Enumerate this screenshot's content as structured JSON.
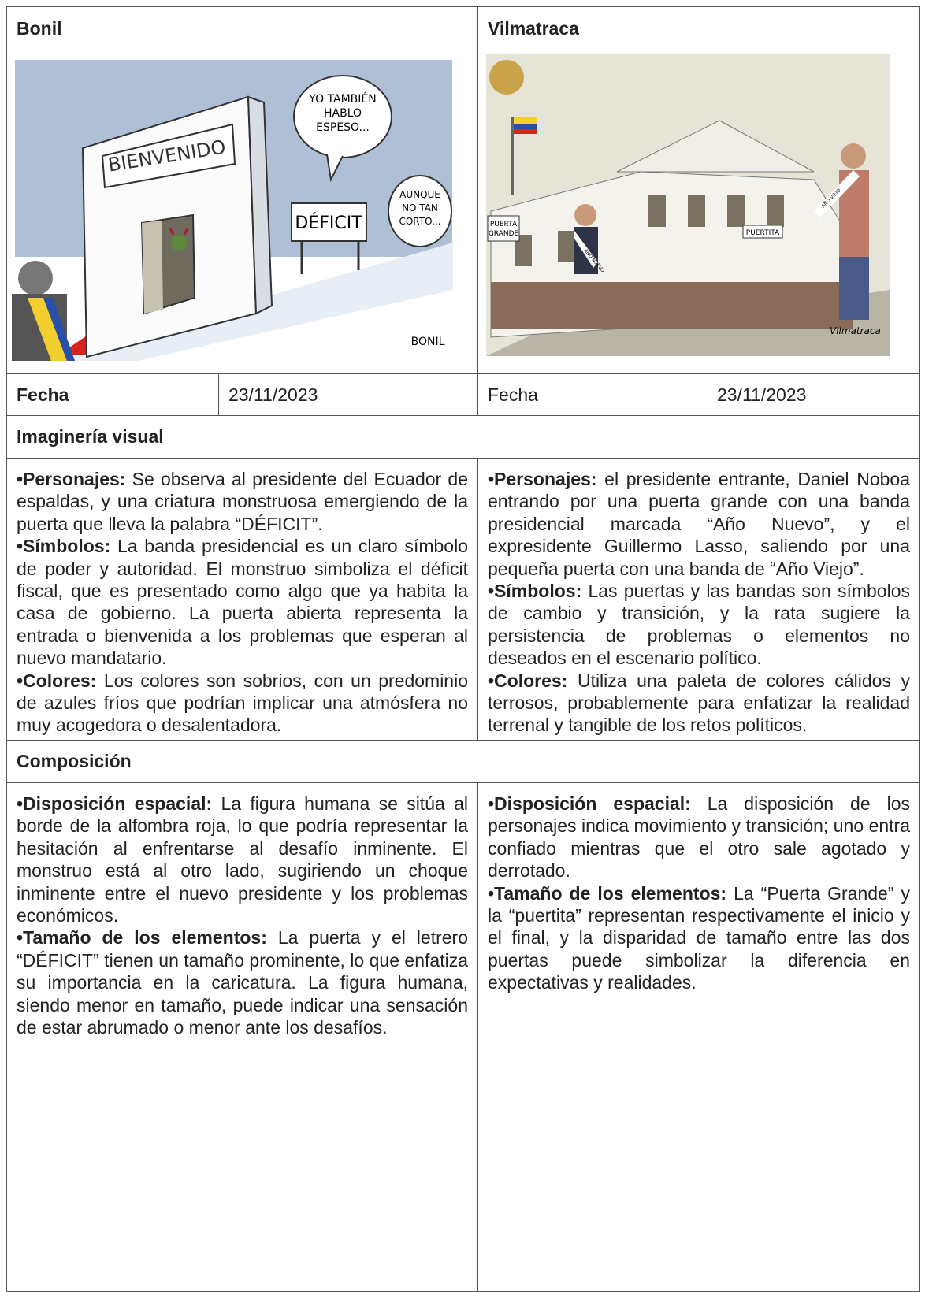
{
  "header": {
    "left": "Bonil",
    "right": "Vilmatraca"
  },
  "images": {
    "left": {
      "sign": "BIENVENIDO",
      "bubble": [
        "YO TAMBIÉN",
        "HABLO",
        "ESPESO..."
      ],
      "sign2": "DÉFICIT",
      "bubble2": [
        "AUNQUE",
        "NO TAN",
        "CORTO..."
      ],
      "signature": "BONIL"
    },
    "right": {
      "door_big": [
        "PUERTA",
        "GRANDE"
      ],
      "door_small": "PUERTITA",
      "band_new": "AÑO NUEVO",
      "band_old": "AÑO VIEJO",
      "signature": "Vilmatraca"
    }
  },
  "date_row": {
    "left_label": "Fecha",
    "left_value": "23/11/2023",
    "right_label": "Fecha",
    "right_value": "23/11/2023"
  },
  "sections": [
    {
      "title": "Imaginería visual",
      "left": [
        {
          "label": "•Personajes:",
          "text": " Se observa al presidente del Ecuador de espaldas, y una criatura monstruosa emergiendo de la puerta que lleva la palabra “DÉFICIT”."
        },
        {
          "label": "•Símbolos:",
          "text": " La banda presidencial es un claro símbolo de poder y autoridad. El monstruo simboliza el déficit fiscal, que es presentado como algo que ya habita la casa de gobierno. La puerta abierta representa la entrada o bienvenida a los problemas que esperan al nuevo mandatario."
        },
        {
          "label": "•Colores:",
          "text": " Los colores son sobrios, con un predominio de azules fríos que podrían implicar una atmósfera no muy acogedora o desalentadora."
        }
      ],
      "right": [
        {
          "label": "•Personajes:",
          "text": " el presidente entrante, Daniel Noboa entrando por una puerta grande con una banda presidencial marcada “Año Nuevo”, y el expresidente Guillermo Lasso, saliendo por una pequeña puerta con una banda de “Año Viejo”."
        },
        {
          "label": "•Símbolos:",
          "text": " Las puertas y las bandas son símbolos de cambio y transición, y la rata sugiere la persistencia de problemas o elementos no deseados en el escenario político."
        },
        {
          "label": "•Colores:",
          "text": " Utiliza una paleta de colores cálidos y terrosos, probablemente para enfatizar la realidad terrenal y tangible de los retos políticos."
        }
      ]
    },
    {
      "title": "Composición",
      "left": [
        {
          "label": "•Disposición espacial:",
          "text": " La figura humana se sitúa al borde de la alfombra roja, lo que podría representar la hesitación al enfrentarse al desafío inminente. El monstruo está al otro lado, sugiriendo un choque inminente entre el nuevo presidente y los problemas económicos."
        },
        {
          "label": "•Tamaño de los elementos:",
          "text": " La puerta y el letrero “DÉFICIT” tienen un tamaño prominente, lo que enfatiza su importancia en la caricatura. La figura humana, siendo menor en tamaño, puede indicar una sensación de estar abrumado o menor ante los desafíos."
        }
      ],
      "right": [
        {
          "label": "•Disposición espacial:",
          "text": " La disposición de los personajes indica movimiento y transición; uno entra confiado mientras que el otro sale agotado y derrotado."
        },
        {
          "label": "•Tamaño de los elementos:",
          "text": " La “Puerta Grande” y la “puertita” representan respectivamente el inicio y el final, y la disparidad de tamaño entre las dos puertas puede simbolizar la diferencia en expectativas y realidades."
        }
      ]
    }
  ]
}
